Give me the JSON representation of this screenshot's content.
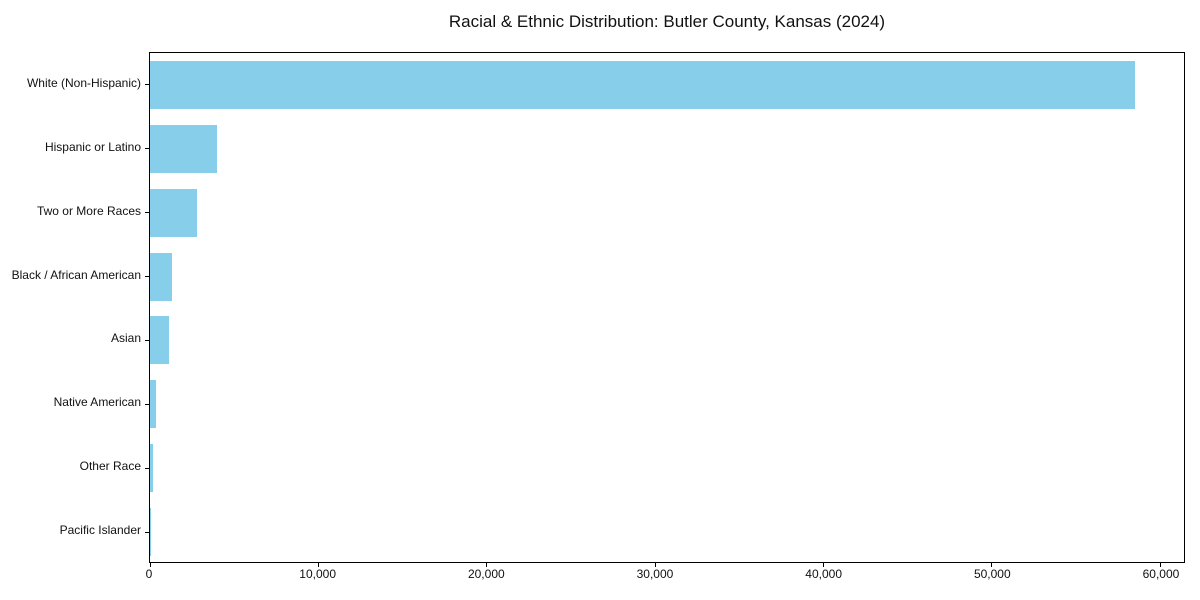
{
  "title": "Racial & Ethnic Distribution: Butler County, Kansas (2024)",
  "chart_data": {
    "type": "bar",
    "orientation": "horizontal",
    "title": "Racial & Ethnic Distribution: Butler County, Kansas (2024)",
    "xlabel": "",
    "ylabel": "",
    "categories": [
      "White (Non-Hispanic)",
      "Hispanic or Latino",
      "Two or More Races",
      "Black / African American",
      "Asian",
      "Native American",
      "Other Race",
      "Pacific Islander"
    ],
    "values": [
      58500,
      4000,
      2800,
      1300,
      1150,
      350,
      200,
      40
    ],
    "xlim": [
      0,
      61425
    ],
    "xticks": [
      0,
      10000,
      20000,
      30000,
      40000,
      50000,
      60000
    ],
    "xtick_labels": [
      "0",
      "10,000",
      "20,000",
      "30,000",
      "40,000",
      "50,000",
      "60,000"
    ],
    "bar_color": "#87CEEB",
    "background_color": "#ffffff",
    "spine_color": "#000000",
    "grid": false,
    "legend": false
  }
}
